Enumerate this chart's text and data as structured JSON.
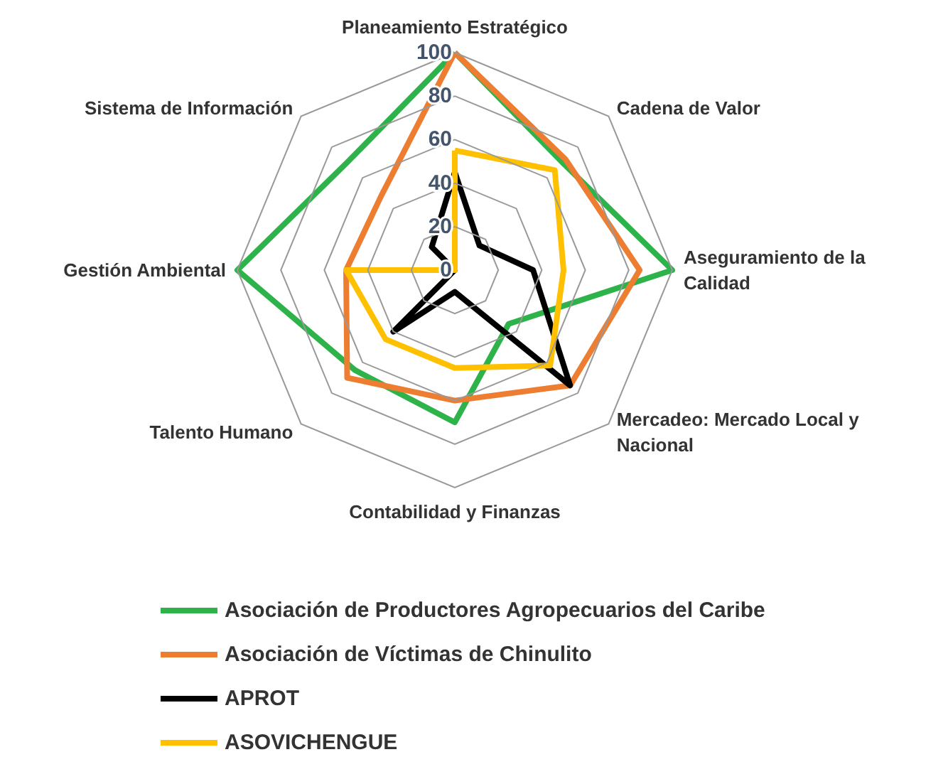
{
  "chart_data": {
    "type": "radar",
    "categories": [
      "Planeamiento Estratégico",
      "Cadena de Valor",
      "Aseguramiento de la Calidad",
      "Mercadeo: Mercado Local y Nacional",
      "Contabilidad y Finanzas",
      "Talento Humano",
      "Gestión Ambiental",
      "Sistema de Información"
    ],
    "series": [
      {
        "name": "Asociación de Productores Agropecuarios del Caribe",
        "color": "#2db34a",
        "values": [
          100,
          70,
          100,
          35,
          70,
          65,
          100,
          70
        ]
      },
      {
        "name": "Asociación de Víctimas de Chinulito",
        "color": "#ed7d31",
        "values": [
          100,
          72,
          85,
          75,
          60,
          70,
          50,
          48
        ]
      },
      {
        "name": "APROT",
        "color": "#000000",
        "values": [
          45,
          16,
          36,
          75,
          10,
          40,
          0,
          15
        ]
      },
      {
        "name": "ASOVICHENGUE",
        "color": "#ffc000",
        "values": [
          55,
          65,
          50,
          62,
          45,
          45,
          50,
          0
        ]
      }
    ],
    "ylim": [
      0,
      100
    ],
    "yticks": [
      0,
      20,
      40,
      60,
      80,
      100
    ],
    "legend": "bottom",
    "marker": "none"
  }
}
